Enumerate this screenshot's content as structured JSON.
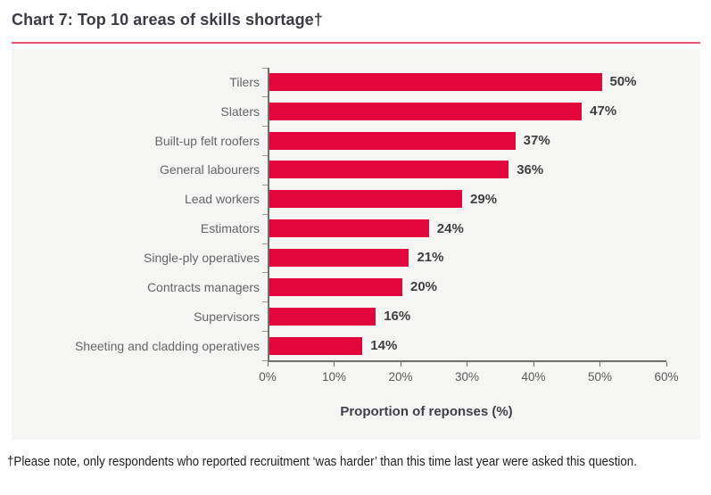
{
  "title": "Chart 7: Top 10 areas of skills shortage†",
  "footnote": "†Please note, only respondents who reported recruitment ‘was harder’ than this time last year were asked this question.",
  "colors": {
    "bar": "#e3063c",
    "title_rule": "#e95677",
    "panel_background": "#f5f5f4",
    "axis_line": "#6e6e6e",
    "tick_label": "#595959",
    "category_label": "#65656a",
    "value_label": "#3f3f41",
    "title_text": "#3b3b45"
  },
  "chart_data": {
    "type": "bar",
    "orientation": "horizontal",
    "title": "Chart 7: Top 10 areas of skills shortage†",
    "categories": [
      "Tilers",
      "Slaters",
      "Built-up felt roofers",
      "General labourers",
      "Lead workers",
      "Estimators",
      "Single-ply operatives",
      "Contracts managers",
      "Supervisors",
      "Sheeting and cladding operatives"
    ],
    "values": [
      50,
      47,
      37,
      36,
      29,
      24,
      21,
      20,
      16,
      14
    ],
    "value_labels": [
      "50%",
      "47%",
      "37%",
      "36%",
      "29%",
      "24%",
      "21%",
      "20%",
      "16%",
      "14%"
    ],
    "xlabel": "Proportion of reponses (%)",
    "ylabel": "",
    "x_ticks": [
      "0%",
      "10%",
      "20%",
      "30%",
      "40%",
      "50%",
      "60%"
    ],
    "x_tick_values": [
      0,
      10,
      20,
      30,
      40,
      50,
      60
    ],
    "xlim": [
      0,
      60
    ],
    "grid": false,
    "legend": "none"
  }
}
